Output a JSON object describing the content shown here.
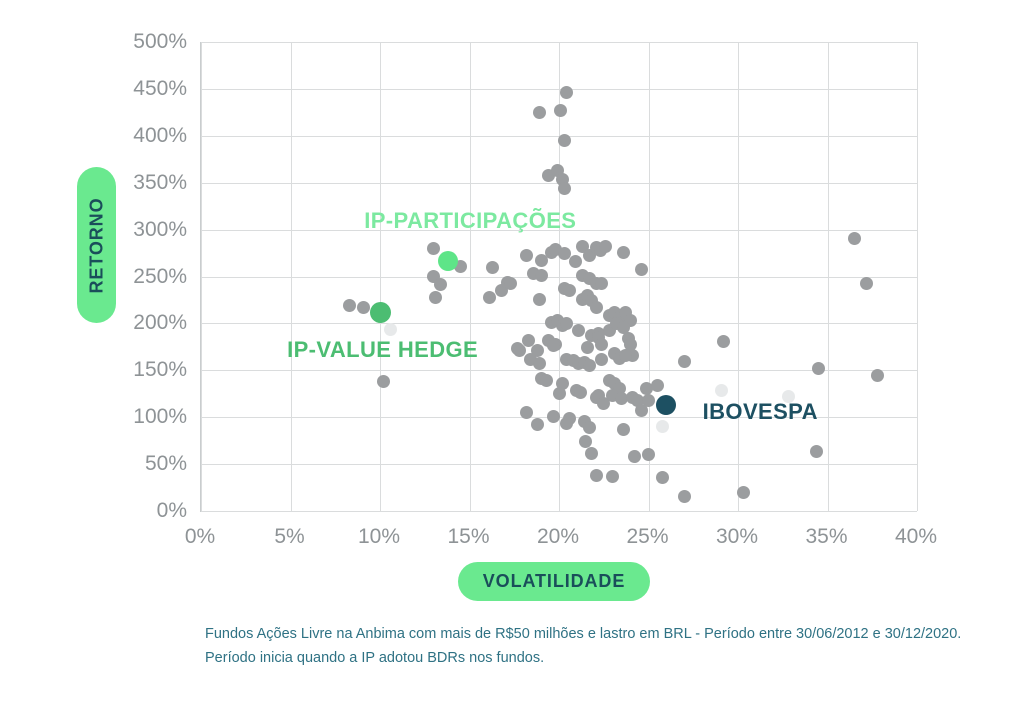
{
  "footnote": {
    "line1": "Fundos Ações Livre na Anbima com mais de R$50 milhões e lastro em BRL - Período entre 30/06/2012 e 30/12/2020.",
    "line2": "Período inicia quando a IP adotou BDRs nos fundos."
  },
  "colors": {
    "axis_pill_bg": "#6ae98f",
    "axis_pill_text": "#1a4e5a",
    "tick_text": "#8e9396",
    "gridline": "#dadcdd",
    "footnote_text": "#2f7284"
  },
  "chart_data": {
    "type": "scatter",
    "xlabel": "VOLATILIDADE",
    "ylabel": "RETORNO",
    "xlim": [
      0,
      40
    ],
    "ylim": [
      0,
      500
    ],
    "x_ticks": [
      0,
      5,
      10,
      15,
      20,
      25,
      30,
      35,
      40
    ],
    "y_ticks": [
      0,
      50,
      100,
      150,
      200,
      250,
      300,
      350,
      400,
      450,
      500
    ],
    "tick_suffix": "%",
    "grid": true,
    "legend_position": "none",
    "series": [
      {
        "name": "other-funds-light",
        "color": "#e7e9ea",
        "size": 13,
        "points": [
          [
            10.6,
            194
          ],
          [
            29.1,
            128
          ],
          [
            32.8,
            122
          ],
          [
            25.8,
            90
          ]
        ]
      },
      {
        "name": "other-funds",
        "color": "#9b9d9f",
        "size": 13,
        "points": [
          [
            20.4,
            446
          ],
          [
            18.9,
            425
          ],
          [
            20.1,
            427
          ],
          [
            20.3,
            395
          ],
          [
            19.4,
            358
          ],
          [
            19.9,
            363
          ],
          [
            20.2,
            353
          ],
          [
            20.3,
            344
          ],
          [
            36.5,
            290
          ],
          [
            37.2,
            243
          ],
          [
            13.0,
            280
          ],
          [
            14.5,
            261
          ],
          [
            16.3,
            260
          ],
          [
            18.2,
            272
          ],
          [
            19.0,
            267
          ],
          [
            19.6,
            276
          ],
          [
            19.8,
            279
          ],
          [
            20.3,
            275
          ],
          [
            20.9,
            266
          ],
          [
            21.3,
            282
          ],
          [
            21.7,
            272
          ],
          [
            22.1,
            281
          ],
          [
            22.3,
            278
          ],
          [
            22.6,
            282
          ],
          [
            23.6,
            276
          ],
          [
            24.6,
            257
          ],
          [
            16.8,
            235
          ],
          [
            17.1,
            244
          ],
          [
            17.3,
            243
          ],
          [
            18.6,
            253
          ],
          [
            19.0,
            251
          ],
          [
            21.3,
            251
          ],
          [
            21.7,
            248
          ],
          [
            22.1,
            243
          ],
          [
            22.4,
            243
          ],
          [
            13.0,
            250
          ],
          [
            13.4,
            241
          ],
          [
            13.1,
            228
          ],
          [
            16.1,
            228
          ],
          [
            18.9,
            226
          ],
          [
            20.3,
            237
          ],
          [
            20.6,
            235
          ],
          [
            21.3,
            226
          ],
          [
            21.6,
            230
          ],
          [
            21.8,
            224
          ],
          [
            22.1,
            217
          ],
          [
            22.8,
            208
          ],
          [
            23.1,
            212
          ],
          [
            23.4,
            206
          ],
          [
            23.7,
            212
          ],
          [
            24.0,
            203
          ],
          [
            8.3,
            219
          ],
          [
            9.1,
            217
          ],
          [
            10.2,
            138
          ],
          [
            19.6,
            201
          ],
          [
            19.9,
            203
          ],
          [
            20.2,
            198
          ],
          [
            20.4,
            200
          ],
          [
            21.1,
            192
          ],
          [
            21.8,
            187
          ],
          [
            22.2,
            189
          ],
          [
            22.8,
            192
          ],
          [
            23.2,
            200
          ],
          [
            23.6,
            196
          ],
          [
            23.9,
            184
          ],
          [
            29.2,
            181
          ],
          [
            17.7,
            173
          ],
          [
            17.8,
            171
          ],
          [
            18.3,
            182
          ],
          [
            18.8,
            171
          ],
          [
            19.4,
            182
          ],
          [
            19.8,
            178
          ],
          [
            21.6,
            174
          ],
          [
            22.2,
            185
          ],
          [
            22.4,
            178
          ],
          [
            24.0,
            178
          ],
          [
            24.1,
            166
          ],
          [
            27.0,
            159
          ],
          [
            34.5,
            152
          ],
          [
            37.8,
            144
          ],
          [
            18.4,
            162
          ],
          [
            18.9,
            157
          ],
          [
            19.7,
            176
          ],
          [
            20.4,
            162
          ],
          [
            20.8,
            160
          ],
          [
            21.1,
            157
          ],
          [
            21.4,
            158
          ],
          [
            21.7,
            155
          ],
          [
            22.4,
            162
          ],
          [
            23.1,
            168
          ],
          [
            23.4,
            163
          ],
          [
            23.7,
            166
          ],
          [
            19.0,
            141
          ],
          [
            19.3,
            139
          ],
          [
            20.2,
            136
          ],
          [
            21.0,
            128
          ],
          [
            22.2,
            123
          ],
          [
            22.8,
            139
          ],
          [
            23.1,
            136
          ],
          [
            23.4,
            131
          ],
          [
            24.9,
            131
          ],
          [
            25.5,
            134
          ],
          [
            20.0,
            125
          ],
          [
            21.2,
            126
          ],
          [
            22.1,
            121
          ],
          [
            22.5,
            115
          ],
          [
            23.0,
            123
          ],
          [
            23.5,
            120
          ],
          [
            24.1,
            121
          ],
          [
            24.4,
            118
          ],
          [
            25.0,
            118
          ],
          [
            24.6,
            107
          ],
          [
            18.2,
            105
          ],
          [
            19.7,
            101
          ],
          [
            20.6,
            99
          ],
          [
            18.8,
            92
          ],
          [
            20.4,
            93
          ],
          [
            21.4,
            95
          ],
          [
            21.7,
            89
          ],
          [
            23.6,
            87
          ],
          [
            21.5,
            74
          ],
          [
            21.8,
            61
          ],
          [
            24.2,
            58
          ],
          [
            25.0,
            60
          ],
          [
            34.4,
            63
          ],
          [
            22.1,
            38
          ],
          [
            23.0,
            37
          ],
          [
            25.8,
            36
          ],
          [
            27.0,
            15
          ],
          [
            30.3,
            20
          ]
        ]
      },
      {
        "name": "IP-PARTICIPAÇÕES",
        "color": "#5ee588",
        "size": 20,
        "points": [
          [
            13.8,
            266
          ]
        ]
      },
      {
        "name": "IP-VALUE HEDGE",
        "color": "#4cbd72",
        "size": 21,
        "points": [
          [
            10.0,
            212
          ]
        ]
      },
      {
        "name": "IBOVESPA",
        "color": "#1d5062",
        "size": 20,
        "points": [
          [
            26.0,
            113
          ]
        ]
      }
    ],
    "annotations": [
      {
        "text": "IP-PARTICIPAÇÕES",
        "x": 15.1,
        "y": 309,
        "color": "#7ce9a0"
      },
      {
        "text": "IP-VALUE HEDGE",
        "x": 10.2,
        "y": 172,
        "color": "#4cbd72"
      },
      {
        "text": "IBOVESPA",
        "x": 31.3,
        "y": 106,
        "color": "#1d5062"
      }
    ]
  }
}
